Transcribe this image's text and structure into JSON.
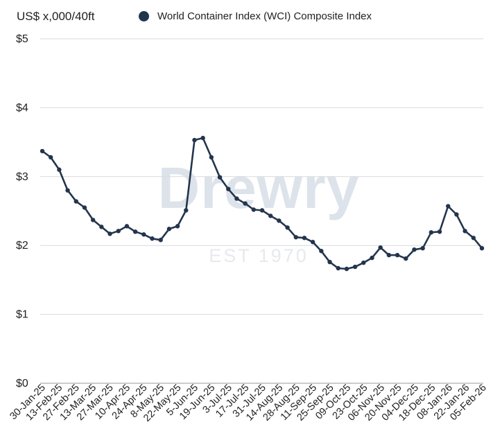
{
  "chart_data": {
    "type": "line",
    "ylabel": "US$ x,000/40ft",
    "ylim": [
      0,
      5
    ],
    "yticks": [
      0,
      1,
      2,
      3,
      4,
      5
    ],
    "ytick_labels": [
      "$0",
      "$1",
      "$2",
      "$3",
      "$4",
      "$5"
    ],
    "grid": "horizontal",
    "legend_position": "top",
    "series": [
      {
        "name": "World Container Index (WCI) Composite Index",
        "color": "#23354d",
        "values": [
          3.37,
          3.28,
          3.1,
          2.8,
          2.64,
          2.55,
          2.37,
          2.27,
          2.17,
          2.21,
          2.28,
          2.2,
          2.16,
          2.1,
          2.08,
          2.24,
          2.28,
          2.51,
          3.53,
          3.56,
          3.28,
          2.99,
          2.82,
          2.68,
          2.61,
          2.52,
          2.51,
          2.43,
          2.36,
          2.26,
          2.12,
          2.11,
          2.05,
          1.92,
          1.76,
          1.67,
          1.66,
          1.69,
          1.75,
          1.82,
          1.97,
          1.86,
          1.86,
          1.81,
          1.94,
          1.96,
          2.19,
          2.2,
          2.57,
          2.45,
          2.21,
          2.11,
          1.96
        ]
      }
    ],
    "x_tick_labels": [
      "30-Jan-25",
      "13-Feb-25",
      "27-Feb-25",
      "13-Mar-25",
      "27-Mar-25",
      "10-Apr-25",
      "24-Apr-25",
      "8-May-25",
      "22-May-25",
      "5-Jun-25",
      "19-Jun-25",
      "3-Jul-25",
      "17-Jul-25",
      "31-Jul-25",
      "14-Aug-25",
      "28-Aug-25",
      "11-Sep-25",
      "25-Sep-25",
      "09-Oct-25",
      "23-Oct-25",
      "06-Nov-25",
      "20-Nov-25",
      "04-Dec-25",
      "18-Dec-25",
      "08-Jan-26",
      "22-Jan-26",
      "05-Feb-26"
    ],
    "watermark": {
      "text": "Drewry",
      "sub": "EST 1970"
    }
  }
}
